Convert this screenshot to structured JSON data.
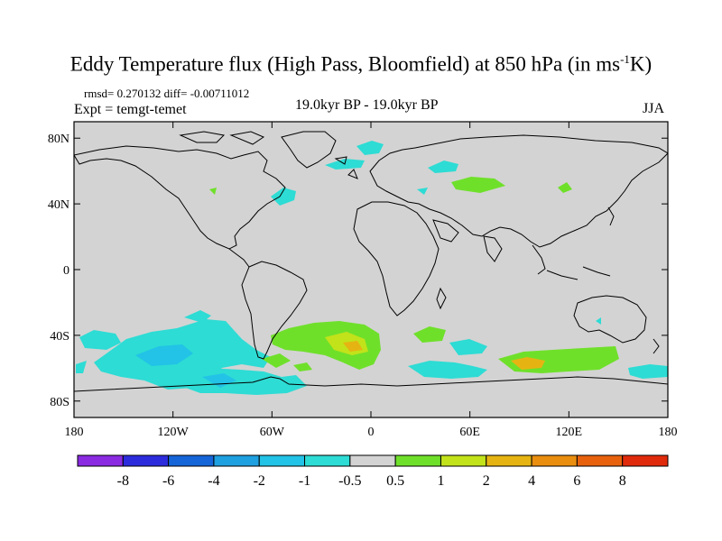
{
  "title_main": "Eddy Temperature flux (High Pass, Bloomfield) at 850 hPa (in ms",
  "title_sup": "-1",
  "title_end": "K)",
  "stats": "rmsd= 0.270132 diff= -0.00711012",
  "experiment": "Expt = temgt-temet",
  "period": "19.0kyr BP - 19.0kyr BP",
  "season": "JJA",
  "map": {
    "lon_range": [
      -180,
      180
    ],
    "lat_range": [
      -90,
      90
    ],
    "background_color": "#d3d3d3",
    "lat_ticks": [
      {
        "value": 80,
        "label": "80N"
      },
      {
        "value": 40,
        "label": "40N"
      },
      {
        "value": 0,
        "label": "0"
      },
      {
        "value": -40,
        "label": "40S"
      },
      {
        "value": -80,
        "label": "80S"
      }
    ],
    "lon_ticks": [
      {
        "value": -180,
        "label": "180"
      },
      {
        "value": -120,
        "label": "120W"
      },
      {
        "value": -60,
        "label": "60W"
      },
      {
        "value": 0,
        "label": "0"
      },
      {
        "value": 60,
        "label": "60E"
      },
      {
        "value": 120,
        "label": "120E"
      },
      {
        "value": 180,
        "label": "180"
      }
    ]
  },
  "colorbar": {
    "colors": [
      "#8a2be2",
      "#2c2cdc",
      "#1565d8",
      "#1fa0e0",
      "#22c3e6",
      "#2ddcd4",
      "#d3d3d3",
      "#6fe02a",
      "#c2e21a",
      "#e6b412",
      "#ea8e10",
      "#e8620e",
      "#e02a0c"
    ],
    "labels": [
      "-8",
      "-6",
      "-4",
      "-2",
      "-1",
      "-0.5",
      "0.5",
      "1",
      "2",
      "4",
      "6",
      "8"
    ]
  }
}
